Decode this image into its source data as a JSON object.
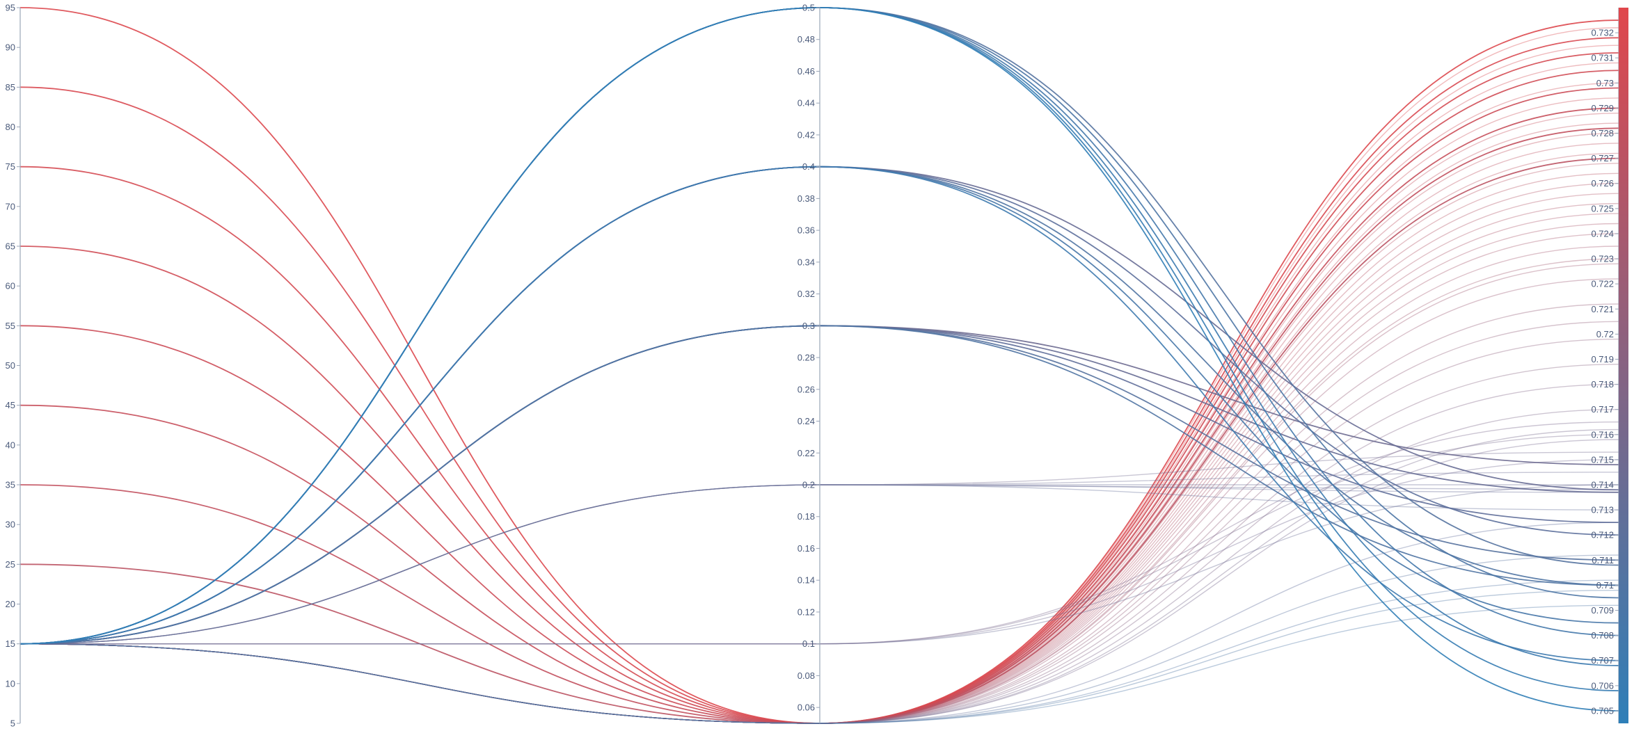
{
  "chart_data": {
    "type": "parallel_coordinates",
    "axes": [
      {
        "key": "a",
        "range": [
          5,
          95
        ],
        "ticks": [
          5,
          10,
          15,
          20,
          25,
          30,
          35,
          40,
          45,
          50,
          55,
          60,
          65,
          70,
          75,
          80,
          85,
          90,
          95
        ]
      },
      {
        "key": "b",
        "range": [
          0.05,
          0.5
        ],
        "ticks": [
          0.06,
          0.08,
          0.1,
          0.12,
          0.14,
          0.16,
          0.18,
          0.2,
          0.22,
          0.24,
          0.26,
          0.28,
          0.3,
          0.32,
          0.34,
          0.36,
          0.38,
          0.4,
          0.42,
          0.44,
          0.46,
          0.48,
          0.5
        ]
      },
      {
        "key": "c",
        "range": [
          0.7045,
          0.733
        ],
        "ticks": [
          0.705,
          0.706,
          0.707,
          0.708,
          0.709,
          0.71,
          0.711,
          0.712,
          0.713,
          0.714,
          0.715,
          0.716,
          0.717,
          0.718,
          0.719,
          0.72,
          0.721,
          0.722,
          0.723,
          0.724,
          0.725,
          0.726,
          0.727,
          0.728,
          0.729,
          0.73,
          0.731,
          0.732
        ]
      }
    ],
    "colorbar": {
      "low_color": "#2e7fb8",
      "high_color": "#e0474c",
      "range": [
        0.7045,
        0.733
      ]
    },
    "tick_labels": {
      "a": [
        "5",
        "10",
        "15",
        "20",
        "25",
        "30",
        "35",
        "40",
        "45",
        "50",
        "55",
        "60",
        "65",
        "70",
        "75",
        "80",
        "85",
        "90",
        "95"
      ],
      "b": [
        "0.06",
        "0.08",
        "0.1",
        "0.12",
        "0.14",
        "0.16",
        "0.18",
        "0.2",
        "0.22",
        "0.24",
        "0.26",
        "0.28",
        "0.3",
        "0.32",
        "0.34",
        "0.36",
        "0.38",
        "0.4",
        "0.42",
        "0.44",
        "0.46",
        "0.48",
        "0.5"
      ],
      "c": [
        "0.705",
        "0.706",
        "0.707",
        "0.708",
        "0.709",
        "0.71",
        "0.711",
        "0.712",
        "0.713",
        "0.714",
        "0.715",
        "0.716",
        "0.717",
        "0.718",
        "0.719",
        "0.72",
        "0.721",
        "0.722",
        "0.723",
        "0.724",
        "0.725",
        "0.726",
        "0.727",
        "0.728",
        "0.729",
        "0.73",
        "0.731",
        "0.732"
      ]
    },
    "lines": [
      {
        "a": 95,
        "b": 0.05,
        "c": 0.7325
      },
      {
        "a": 85,
        "b": 0.05,
        "c": 0.7318
      },
      {
        "a": 75,
        "b": 0.05,
        "c": 0.7312
      },
      {
        "a": 65,
        "b": 0.05,
        "c": 0.7305
      },
      {
        "a": 55,
        "b": 0.05,
        "c": 0.7298
      },
      {
        "a": 45,
        "b": 0.05,
        "c": 0.729
      },
      {
        "a": 35,
        "b": 0.05,
        "c": 0.7282
      },
      {
        "a": 25,
        "b": 0.05,
        "c": 0.727
      },
      {
        "a": 15,
        "b": 0.05,
        "c": 0.723
      },
      {
        "a": 15,
        "b": 0.05,
        "c": 0.7228
      },
      {
        "a": 15,
        "b": 0.05,
        "c": 0.7322
      },
      {
        "a": 15,
        "b": 0.05,
        "c": 0.7315
      },
      {
        "a": 15,
        "b": 0.05,
        "c": 0.7308
      },
      {
        "a": 15,
        "b": 0.05,
        "c": 0.73
      },
      {
        "a": 15,
        "b": 0.05,
        "c": 0.7294
      },
      {
        "a": 15,
        "b": 0.05,
        "c": 0.7288
      },
      {
        "a": 15,
        "b": 0.05,
        "c": 0.7284
      },
      {
        "a": 15,
        "b": 0.05,
        "c": 0.728
      },
      {
        "a": 15,
        "b": 0.05,
        "c": 0.7276
      },
      {
        "a": 15,
        "b": 0.05,
        "c": 0.7272
      },
      {
        "a": 15,
        "b": 0.05,
        "c": 0.7268
      },
      {
        "a": 15,
        "b": 0.05,
        "c": 0.7264
      },
      {
        "a": 15,
        "b": 0.05,
        "c": 0.726
      },
      {
        "a": 15,
        "b": 0.05,
        "c": 0.7256
      },
      {
        "a": 15,
        "b": 0.05,
        "c": 0.7252
      },
      {
        "a": 15,
        "b": 0.05,
        "c": 0.7248
      },
      {
        "a": 15,
        "b": 0.05,
        "c": 0.7244
      },
      {
        "a": 15,
        "b": 0.05,
        "c": 0.724
      },
      {
        "a": 15,
        "b": 0.05,
        "c": 0.7235
      },
      {
        "a": 15,
        "b": 0.05,
        "c": 0.7222
      },
      {
        "a": 15,
        "b": 0.05,
        "c": 0.7212
      },
      {
        "a": 15,
        "b": 0.05,
        "c": 0.7205
      },
      {
        "a": 15,
        "b": 0.05,
        "c": 0.7198
      },
      {
        "a": 15,
        "b": 0.05,
        "c": 0.7188
      },
      {
        "a": 15,
        "b": 0.05,
        "c": 0.718
      },
      {
        "a": 15,
        "b": 0.05,
        "c": 0.717
      },
      {
        "a": 15,
        "b": 0.05,
        "c": 0.7162
      },
      {
        "a": 15,
        "b": 0.05,
        "c": 0.7158
      },
      {
        "a": 15,
        "b": 0.05,
        "c": 0.7125
      },
      {
        "a": 15,
        "b": 0.05,
        "c": 0.7112
      },
      {
        "a": 15,
        "b": 0.05,
        "c": 0.7102
      },
      {
        "a": 15,
        "b": 0.05,
        "c": 0.7098
      },
      {
        "a": 15,
        "b": 0.05,
        "c": 0.7092
      },
      {
        "a": 15,
        "b": 0.1,
        "c": 0.7165
      },
      {
        "a": 15,
        "b": 0.1,
        "c": 0.716
      },
      {
        "a": 15,
        "b": 0.1,
        "c": 0.715
      },
      {
        "a": 15,
        "b": 0.1,
        "c": 0.714
      },
      {
        "a": 15,
        "b": 0.2,
        "c": 0.7153
      },
      {
        "a": 15,
        "b": 0.2,
        "c": 0.7145
      },
      {
        "a": 15,
        "b": 0.2,
        "c": 0.714
      },
      {
        "a": 15,
        "b": 0.2,
        "c": 0.7138
      },
      {
        "a": 15,
        "b": 0.2,
        "c": 0.7137
      },
      {
        "a": 15,
        "b": 0.2,
        "c": 0.713
      },
      {
        "a": 15,
        "b": 0.3,
        "c": 0.7148
      },
      {
        "a": 15,
        "b": 0.3,
        "c": 0.7137
      },
      {
        "a": 15,
        "b": 0.3,
        "c": 0.7125
      },
      {
        "a": 15,
        "b": 0.3,
        "c": 0.711
      },
      {
        "a": 15,
        "b": 0.3,
        "c": 0.71
      },
      {
        "a": 15,
        "b": 0.4,
        "c": 0.7138
      },
      {
        "a": 15,
        "b": 0.4,
        "c": 0.712
      },
      {
        "a": 15,
        "b": 0.4,
        "c": 0.71
      },
      {
        "a": 15,
        "b": 0.4,
        "c": 0.7085
      },
      {
        "a": 15,
        "b": 0.4,
        "c": 0.707
      },
      {
        "a": 15,
        "b": 0.5,
        "c": 0.7108
      },
      {
        "a": 15,
        "b": 0.5,
        "c": 0.7095
      },
      {
        "a": 15,
        "b": 0.5,
        "c": 0.708
      },
      {
        "a": 15,
        "b": 0.5,
        "c": 0.7068
      },
      {
        "a": 15,
        "b": 0.5,
        "c": 0.7058
      },
      {
        "a": 15,
        "b": 0.5,
        "c": 0.705
      }
    ]
  }
}
